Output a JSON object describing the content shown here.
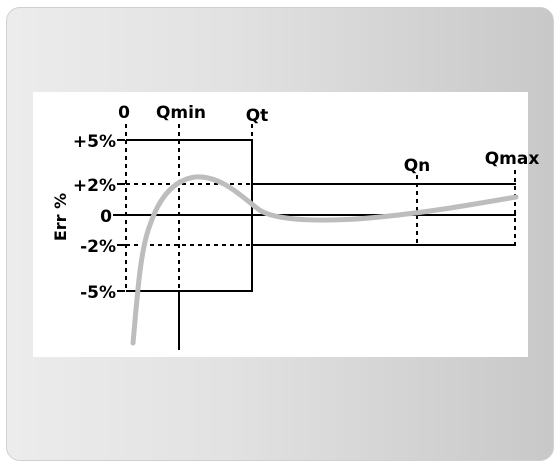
{
  "diagram": {
    "y_axis_title": "Err %",
    "x_labels": [
      "0",
      "Qmin",
      "Qt",
      "Qn",
      "Qmax"
    ],
    "y_labels": [
      "+5%",
      "+2%",
      "0",
      "-2%",
      "-5%"
    ],
    "colors": {
      "background_panel": "#ffffff",
      "frame": "#e2e2e2",
      "curve": "#bdbdbd",
      "lines": "#000000"
    }
  }
}
